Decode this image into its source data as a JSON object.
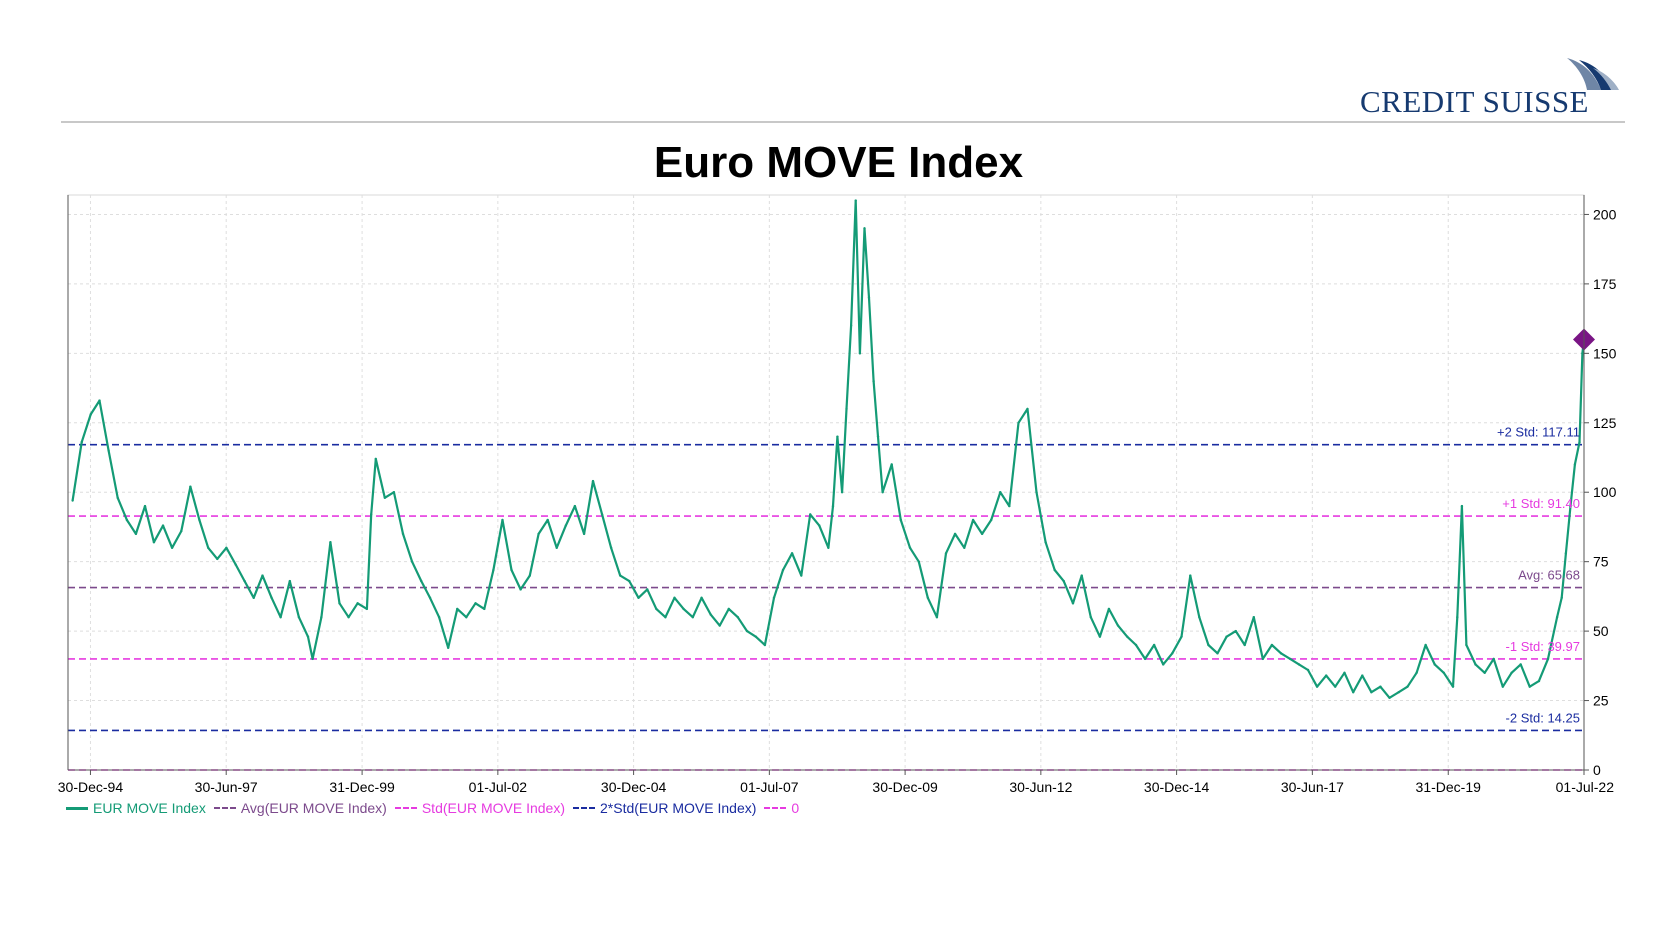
{
  "brand": {
    "name": "CREDIT SUISSE",
    "color": "#163a70"
  },
  "chart_data": {
    "type": "line",
    "title": "Euro MOVE Index",
    "xlabel": "",
    "ylabel": "",
    "xlim": [
      "1994-08-01",
      "2022-07-01"
    ],
    "ylim": [
      0,
      207
    ],
    "grid": true,
    "legend_position": "bottom-left",
    "y_ticks": [
      0,
      25,
      50,
      75,
      100,
      125,
      150,
      175,
      200
    ],
    "x_ticks": [
      {
        "date": "1994-12-30",
        "label": "30-Dec-94"
      },
      {
        "date": "1997-06-30",
        "label": "30-Jun-97"
      },
      {
        "date": "1999-12-31",
        "label": "31-Dec-99"
      },
      {
        "date": "2002-07-01",
        "label": "01-Jul-02"
      },
      {
        "date": "2004-12-30",
        "label": "30-Dec-04"
      },
      {
        "date": "2007-07-01",
        "label": "01-Jul-07"
      },
      {
        "date": "2009-12-30",
        "label": "30-Dec-09"
      },
      {
        "date": "2012-06-30",
        "label": "30-Jun-12"
      },
      {
        "date": "2014-12-30",
        "label": "30-Dec-14"
      },
      {
        "date": "2017-06-30",
        "label": "30-Jun-17"
      },
      {
        "date": "2019-12-31",
        "label": "31-Dec-19"
      },
      {
        "date": "2022-07-01",
        "label": "01-Jul-22"
      }
    ],
    "series": [
      {
        "name": "EUR MOVE Index",
        "color": "#149b76",
        "points": [
          [
            "1994-09-01",
            97
          ],
          [
            "1994-11-01",
            118
          ],
          [
            "1995-01-01",
            128
          ],
          [
            "1995-03-01",
            133
          ],
          [
            "1995-05-01",
            115
          ],
          [
            "1995-07-01",
            98
          ],
          [
            "1995-09-01",
            90
          ],
          [
            "1995-11-01",
            85
          ],
          [
            "1996-01-01",
            95
          ],
          [
            "1996-03-01",
            82
          ],
          [
            "1996-05-01",
            88
          ],
          [
            "1996-07-01",
            80
          ],
          [
            "1996-09-01",
            86
          ],
          [
            "1996-11-01",
            102
          ],
          [
            "1997-01-01",
            90
          ],
          [
            "1997-03-01",
            80
          ],
          [
            "1997-05-01",
            76
          ],
          [
            "1997-07-01",
            80
          ],
          [
            "1997-09-01",
            74
          ],
          [
            "1997-11-01",
            68
          ],
          [
            "1998-01-01",
            62
          ],
          [
            "1998-03-01",
            70
          ],
          [
            "1998-05-01",
            62
          ],
          [
            "1998-07-01",
            55
          ],
          [
            "1998-09-01",
            68
          ],
          [
            "1998-11-01",
            55
          ],
          [
            "1999-01-01",
            48
          ],
          [
            "1999-02-01",
            40
          ],
          [
            "1999-04-01",
            55
          ],
          [
            "1999-06-01",
            82
          ],
          [
            "1999-08-01",
            60
          ],
          [
            "1999-10-01",
            55
          ],
          [
            "1999-12-01",
            60
          ],
          [
            "2000-02-01",
            58
          ],
          [
            "2000-03-01",
            92
          ],
          [
            "2000-04-01",
            112
          ],
          [
            "2000-06-01",
            98
          ],
          [
            "2000-08-01",
            100
          ],
          [
            "2000-10-01",
            85
          ],
          [
            "2000-12-01",
            75
          ],
          [
            "2001-02-01",
            68
          ],
          [
            "2001-04-01",
            62
          ],
          [
            "2001-06-01",
            55
          ],
          [
            "2001-08-01",
            44
          ],
          [
            "2001-10-01",
            58
          ],
          [
            "2001-12-01",
            55
          ],
          [
            "2002-02-01",
            60
          ],
          [
            "2002-04-01",
            58
          ],
          [
            "2002-06-01",
            72
          ],
          [
            "2002-08-01",
            90
          ],
          [
            "2002-10-01",
            72
          ],
          [
            "2002-12-01",
            65
          ],
          [
            "2003-02-01",
            70
          ],
          [
            "2003-04-01",
            85
          ],
          [
            "2003-06-01",
            90
          ],
          [
            "2003-08-01",
            80
          ],
          [
            "2003-10-01",
            88
          ],
          [
            "2003-12-01",
            95
          ],
          [
            "2004-02-01",
            85
          ],
          [
            "2004-04-01",
            104
          ],
          [
            "2004-06-01",
            92
          ],
          [
            "2004-08-01",
            80
          ],
          [
            "2004-10-01",
            70
          ],
          [
            "2004-12-01",
            68
          ],
          [
            "2005-02-01",
            62
          ],
          [
            "2005-04-01",
            65
          ],
          [
            "2005-06-01",
            58
          ],
          [
            "2005-08-01",
            55
          ],
          [
            "2005-10-01",
            62
          ],
          [
            "2005-12-01",
            58
          ],
          [
            "2006-02-01",
            55
          ],
          [
            "2006-04-01",
            62
          ],
          [
            "2006-06-01",
            56
          ],
          [
            "2006-08-01",
            52
          ],
          [
            "2006-10-01",
            58
          ],
          [
            "2006-12-01",
            55
          ],
          [
            "2007-02-01",
            50
          ],
          [
            "2007-04-01",
            48
          ],
          [
            "2007-06-01",
            45
          ],
          [
            "2007-08-01",
            62
          ],
          [
            "2007-10-01",
            72
          ],
          [
            "2007-12-01",
            78
          ],
          [
            "2008-02-01",
            70
          ],
          [
            "2008-04-01",
            92
          ],
          [
            "2008-06-01",
            88
          ],
          [
            "2008-08-01",
            80
          ],
          [
            "2008-09-01",
            95
          ],
          [
            "2008-10-01",
            120
          ],
          [
            "2008-11-01",
            100
          ],
          [
            "2008-12-01",
            130
          ],
          [
            "2009-01-01",
            160
          ],
          [
            "2009-02-01",
            205
          ],
          [
            "2009-03-01",
            150
          ],
          [
            "2009-04-01",
            195
          ],
          [
            "2009-05-01",
            170
          ],
          [
            "2009-06-01",
            140
          ],
          [
            "2009-07-01",
            120
          ],
          [
            "2009-08-01",
            100
          ],
          [
            "2009-10-01",
            110
          ],
          [
            "2009-12-01",
            90
          ],
          [
            "2010-02-01",
            80
          ],
          [
            "2010-04-01",
            75
          ],
          [
            "2010-06-01",
            62
          ],
          [
            "2010-08-01",
            55
          ],
          [
            "2010-10-01",
            78
          ],
          [
            "2010-12-01",
            85
          ],
          [
            "2011-02-01",
            80
          ],
          [
            "2011-04-01",
            90
          ],
          [
            "2011-06-01",
            85
          ],
          [
            "2011-08-01",
            90
          ],
          [
            "2011-10-01",
            100
          ],
          [
            "2011-12-01",
            95
          ],
          [
            "2012-02-01",
            125
          ],
          [
            "2012-04-01",
            130
          ],
          [
            "2012-06-01",
            100
          ],
          [
            "2012-08-01",
            82
          ],
          [
            "2012-10-01",
            72
          ],
          [
            "2012-12-01",
            68
          ],
          [
            "2013-02-01",
            60
          ],
          [
            "2013-04-01",
            70
          ],
          [
            "2013-06-01",
            55
          ],
          [
            "2013-08-01",
            48
          ],
          [
            "2013-10-01",
            58
          ],
          [
            "2013-12-01",
            52
          ],
          [
            "2014-02-01",
            48
          ],
          [
            "2014-04-01",
            45
          ],
          [
            "2014-06-01",
            40
          ],
          [
            "2014-08-01",
            45
          ],
          [
            "2014-10-01",
            38
          ],
          [
            "2014-12-01",
            42
          ],
          [
            "2015-02-01",
            48
          ],
          [
            "2015-04-01",
            70
          ],
          [
            "2015-06-01",
            55
          ],
          [
            "2015-08-01",
            45
          ],
          [
            "2015-10-01",
            42
          ],
          [
            "2015-12-01",
            48
          ],
          [
            "2016-02-01",
            50
          ],
          [
            "2016-04-01",
            45
          ],
          [
            "2016-06-01",
            55
          ],
          [
            "2016-08-01",
            40
          ],
          [
            "2016-10-01",
            45
          ],
          [
            "2016-12-01",
            42
          ],
          [
            "2017-02-01",
            40
          ],
          [
            "2017-04-01",
            38
          ],
          [
            "2017-06-01",
            36
          ],
          [
            "2017-08-01",
            30
          ],
          [
            "2017-10-01",
            34
          ],
          [
            "2017-12-01",
            30
          ],
          [
            "2018-02-01",
            35
          ],
          [
            "2018-04-01",
            28
          ],
          [
            "2018-06-01",
            34
          ],
          [
            "2018-08-01",
            28
          ],
          [
            "2018-10-01",
            30
          ],
          [
            "2018-12-01",
            26
          ],
          [
            "2019-02-01",
            28
          ],
          [
            "2019-04-01",
            30
          ],
          [
            "2019-06-01",
            35
          ],
          [
            "2019-08-01",
            45
          ],
          [
            "2019-10-01",
            38
          ],
          [
            "2019-12-01",
            35
          ],
          [
            "2020-02-01",
            30
          ],
          [
            "2020-03-01",
            55
          ],
          [
            "2020-04-01",
            95
          ],
          [
            "2020-05-01",
            45
          ],
          [
            "2020-07-01",
            38
          ],
          [
            "2020-09-01",
            35
          ],
          [
            "2020-11-01",
            40
          ],
          [
            "2021-01-01",
            30
          ],
          [
            "2021-03-01",
            35
          ],
          [
            "2021-05-01",
            38
          ],
          [
            "2021-07-01",
            30
          ],
          [
            "2021-09-01",
            32
          ],
          [
            "2021-11-01",
            40
          ],
          [
            "2022-01-01",
            55
          ],
          [
            "2022-02-01",
            62
          ],
          [
            "2022-03-01",
            78
          ],
          [
            "2022-04-01",
            95
          ],
          [
            "2022-05-01",
            110
          ],
          [
            "2022-06-01",
            118
          ],
          [
            "2022-06-20",
            150
          ],
          [
            "2022-07-01",
            155
          ]
        ]
      },
      {
        "name": "Avg(EUR MOVE Index)",
        "color": "#7c4a8c",
        "value": 65.68
      },
      {
        "name": "Std(EUR MOVE Index)",
        "color": "#e63be0",
        "values": [
          91.4,
          39.97
        ]
      },
      {
        "name": "2*Std(EUR MOVE Index)",
        "color": "#1a2ca0",
        "values": [
          117.11,
          14.25
        ]
      },
      {
        "name": "0",
        "color": "#e63be0",
        "value": 0
      }
    ],
    "annotations": [
      {
        "label": "+2 Std: 117.11",
        "value": 117.11,
        "color": "#1a2ca0"
      },
      {
        "label": "+1 Std: 91.40",
        "value": 91.4,
        "color": "#e63be0"
      },
      {
        "label": "Avg: 65.68",
        "value": 65.68,
        "color": "#7c4a8c"
      },
      {
        "label": "-1 Std: 39.97",
        "value": 39.97,
        "color": "#e63be0"
      },
      {
        "label": "-2 Std: 14.25",
        "value": 14.25,
        "color": "#1a2ca0"
      }
    ],
    "latest_marker": {
      "date": "2022-07-01",
      "value": 155,
      "color": "#7a1585"
    }
  }
}
